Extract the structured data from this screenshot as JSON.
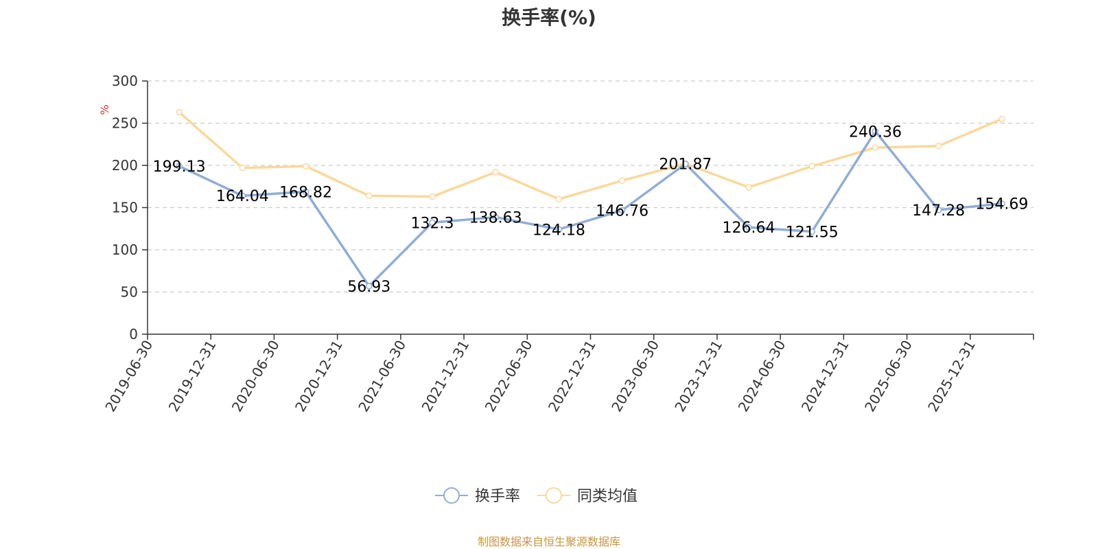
{
  "chart_data": {
    "type": "line",
    "title": "换手率(%)",
    "ylabel": "%",
    "xlabel": "",
    "ylim": [
      0,
      300
    ],
    "yticks": [
      0,
      50,
      100,
      150,
      200,
      250,
      300
    ],
    "grid": true,
    "legend_position": "bottom-center",
    "categories": [
      "2019-06-30",
      "2019-12-31",
      "2020-06-30",
      "2020-12-31",
      "2021-06-30",
      "2021-12-31",
      "2022-06-30",
      "2022-12-31",
      "2023-06-30",
      "2023-12-31",
      "2024-06-30",
      "2024-12-31",
      "2025-06-30",
      "2025-12-31"
    ],
    "series": [
      {
        "name": "换手率",
        "color": "#8fadd8",
        "values": [
          199.13,
          164.04,
          168.82,
          56.93,
          132.3,
          138.63,
          124.18,
          146.76,
          201.87,
          126.64,
          121.55,
          240.36,
          147.28,
          154.69
        ],
        "labels": [
          "199.13",
          "164.04",
          "168.82",
          "56.93",
          "132.3",
          "138.63",
          "124.18",
          "146.76",
          "201.87",
          "126.64",
          "121.55",
          "240.36",
          "147.28",
          "154.69"
        ],
        "show_labels": true
      },
      {
        "name": "同类均值",
        "color": "#fbd89a",
        "values": [
          263,
          197,
          199,
          164,
          163,
          192,
          160,
          182,
          202,
          174,
          199,
          221,
          223,
          255
        ],
        "show_labels": false
      }
    ]
  },
  "footer": "制图数据来自恒生聚源数据库"
}
